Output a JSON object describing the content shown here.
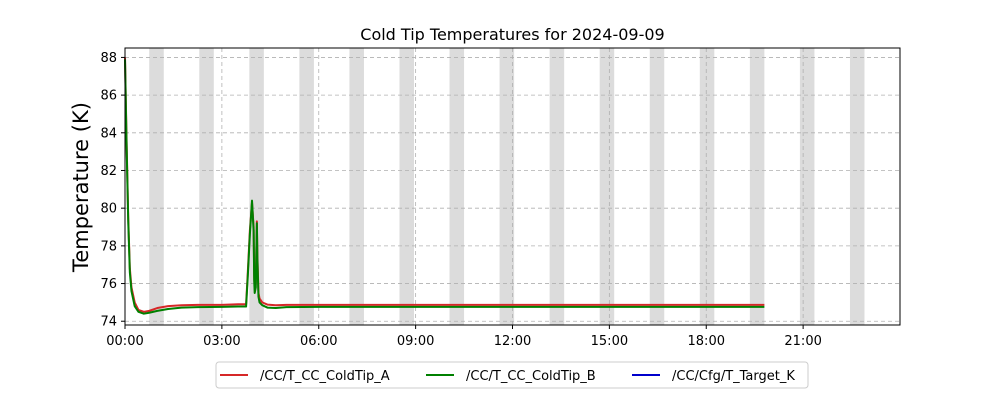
{
  "chart_data": {
    "type": "line",
    "title": "Cold Tip Temperatures for 2024-09-09",
    "xlabel": "",
    "ylabel": "Temperature (K)",
    "xlim": [
      "00:00",
      "24:00"
    ],
    "ylim": [
      73.8,
      88.5
    ],
    "x_ticks": [
      "00:00",
      "03:00",
      "06:00",
      "09:00",
      "12:00",
      "15:00",
      "18:00",
      "21:00"
    ],
    "y_ticks": [
      "74",
      "76",
      "78",
      "80",
      "82",
      "84",
      "86",
      "88"
    ],
    "grid": true,
    "legend_position": "bottom-center",
    "shaded_intervals": [
      [
        "00:45",
        "01:12"
      ],
      [
        "02:18",
        "02:45"
      ],
      [
        "03:51",
        "04:18"
      ],
      [
        "05:24",
        "05:51"
      ],
      [
        "06:57",
        "07:24"
      ],
      [
        "08:30",
        "08:57"
      ],
      [
        "10:03",
        "10:30"
      ],
      [
        "11:36",
        "12:03"
      ],
      [
        "13:09",
        "13:36"
      ],
      [
        "14:42",
        "15:09"
      ],
      [
        "16:15",
        "16:42"
      ],
      [
        "17:48",
        "18:15"
      ],
      [
        "19:21",
        "19:48"
      ],
      [
        "20:54",
        "21:21"
      ],
      [
        "22:27",
        "22:54"
      ]
    ],
    "series": [
      {
        "name": "/CC/T_CC_ColdTip_A",
        "color": "#d62728",
        "x": [
          "00:00",
          "00:03",
          "00:06",
          "00:09",
          "00:12",
          "00:18",
          "00:25",
          "00:35",
          "00:45",
          "01:00",
          "01:20",
          "01:45",
          "02:15",
          "03:00",
          "03:30",
          "03:45",
          "03:48",
          "03:52",
          "03:56",
          "03:59",
          "04:00",
          "04:01",
          "04:03",
          "04:05",
          "04:06",
          "04:08",
          "04:10",
          "04:15",
          "04:25",
          "04:40",
          "05:00",
          "06:00",
          "09:00",
          "12:00",
          "15:00",
          "18:00",
          "19:48"
        ],
        "values": [
          88.0,
          83.5,
          79.5,
          76.8,
          75.8,
          75.0,
          74.6,
          74.5,
          74.55,
          74.7,
          74.8,
          74.85,
          74.87,
          74.87,
          74.9,
          74.9,
          76.5,
          78.8,
          80.3,
          79.0,
          76.5,
          75.7,
          76.0,
          79.3,
          77.5,
          75.5,
          75.2,
          75.0,
          74.88,
          74.85,
          74.87,
          74.87,
          74.87,
          74.87,
          74.87,
          74.87,
          74.87
        ]
      },
      {
        "name": "/CC/T_CC_ColdTip_B",
        "color": "#008000",
        "x": [
          "00:00",
          "00:03",
          "00:06",
          "00:09",
          "00:12",
          "00:18",
          "00:25",
          "00:35",
          "00:45",
          "01:00",
          "01:20",
          "01:45",
          "02:15",
          "03:00",
          "03:30",
          "03:45",
          "03:48",
          "03:52",
          "03:56",
          "03:59",
          "04:00",
          "04:01",
          "04:03",
          "04:05",
          "04:06",
          "04:08",
          "04:10",
          "04:15",
          "04:25",
          "04:40",
          "05:00",
          "06:00",
          "09:00",
          "12:00",
          "15:00",
          "18:00",
          "19:48"
        ],
        "values": [
          87.9,
          83.3,
          79.3,
          76.6,
          75.6,
          74.8,
          74.5,
          74.4,
          74.45,
          74.55,
          74.65,
          74.72,
          74.75,
          74.76,
          74.78,
          74.78,
          76.3,
          78.6,
          80.4,
          78.8,
          76.2,
          75.5,
          75.8,
          79.2,
          77.3,
          75.3,
          75.0,
          74.85,
          74.72,
          74.7,
          74.75,
          74.76,
          74.76,
          74.76,
          74.76,
          74.76,
          74.76
        ]
      },
      {
        "name": "/CC/Cfg/T_Target_K",
        "color": "#0000cc",
        "x": [],
        "values": []
      }
    ]
  }
}
